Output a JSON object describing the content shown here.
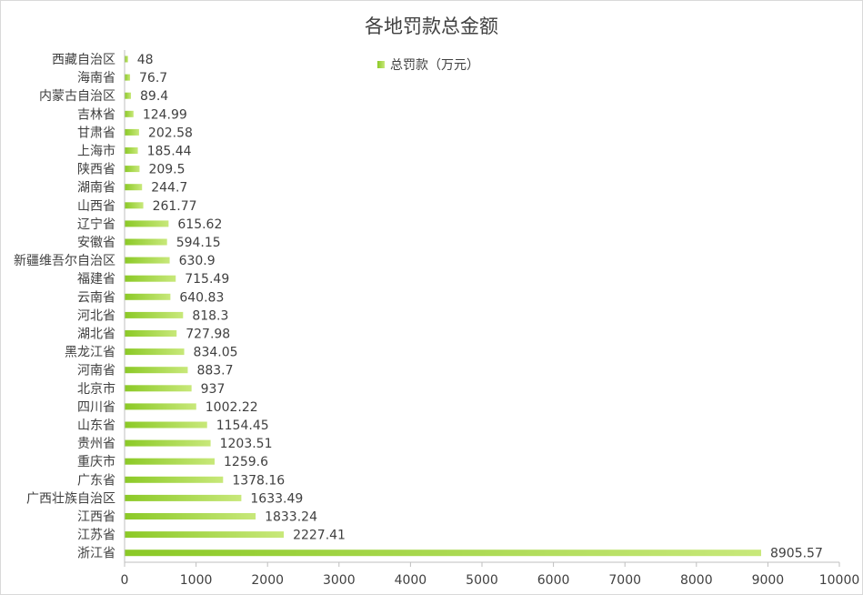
{
  "chart_data": {
    "type": "bar",
    "orientation": "horizontal",
    "title": "各地罚款总金额",
    "legend": {
      "position": "top-right",
      "entries": [
        "总罚款（万元）"
      ]
    },
    "categories": [
      "西藏自治区",
      "海南省",
      "内蒙古自治区",
      "吉林省",
      "甘肃省",
      "上海市",
      "陕西省",
      "湖南省",
      "山西省",
      "辽宁省",
      "安徽省",
      "新疆维吾尔自治区",
      "福建省",
      "云南省",
      "河北省",
      "湖北省",
      "黑龙江省",
      "河南省",
      "北京市",
      "四川省",
      "山东省",
      "贵州省",
      "重庆市",
      "广东省",
      "广西壮族自治区",
      "江西省",
      "江苏省",
      "浙江省"
    ],
    "series": [
      {
        "name": "总罚款（万元）",
        "values": [
          48,
          76.7,
          89.4,
          124.99,
          202.58,
          185.44,
          209.5,
          244.7,
          261.77,
          615.62,
          594.15,
          630.9,
          715.49,
          640.83,
          818.3,
          727.98,
          834.05,
          883.7,
          937,
          1002.22,
          1154.45,
          1203.51,
          1259.6,
          1378.16,
          1633.49,
          1833.24,
          2227.41,
          8905.57
        ],
        "value_labels": [
          "48",
          "76.7",
          "89.4",
          "124.99",
          "202.58",
          "185.44",
          "209.5",
          "244.7",
          "261.77",
          "615.62",
          "594.15",
          "630.9",
          "715.49",
          "640.83",
          "818.3",
          "727.98",
          "834.05",
          "883.7",
          "937",
          "1002.22",
          "1154.45",
          "1203.51",
          "1259.6",
          "1378.16",
          "1633.49",
          "1833.24",
          "2227.41",
          "8905.57"
        ]
      }
    ],
    "xlim": [
      0,
      10000
    ],
    "x_ticks": [
      0,
      1000,
      2000,
      3000,
      4000,
      5000,
      6000,
      7000,
      8000,
      9000,
      10000
    ],
    "x_tick_labels": [
      "0",
      "1000",
      "2000",
      "3000",
      "4000",
      "5000",
      "6000",
      "7000",
      "8000",
      "9000",
      "10000"
    ],
    "grid": false,
    "colors": {
      "bar_start": "#8bc926",
      "bar_end": "#c8e87a",
      "axis": "#bfbfbf",
      "text": "#404040"
    }
  }
}
